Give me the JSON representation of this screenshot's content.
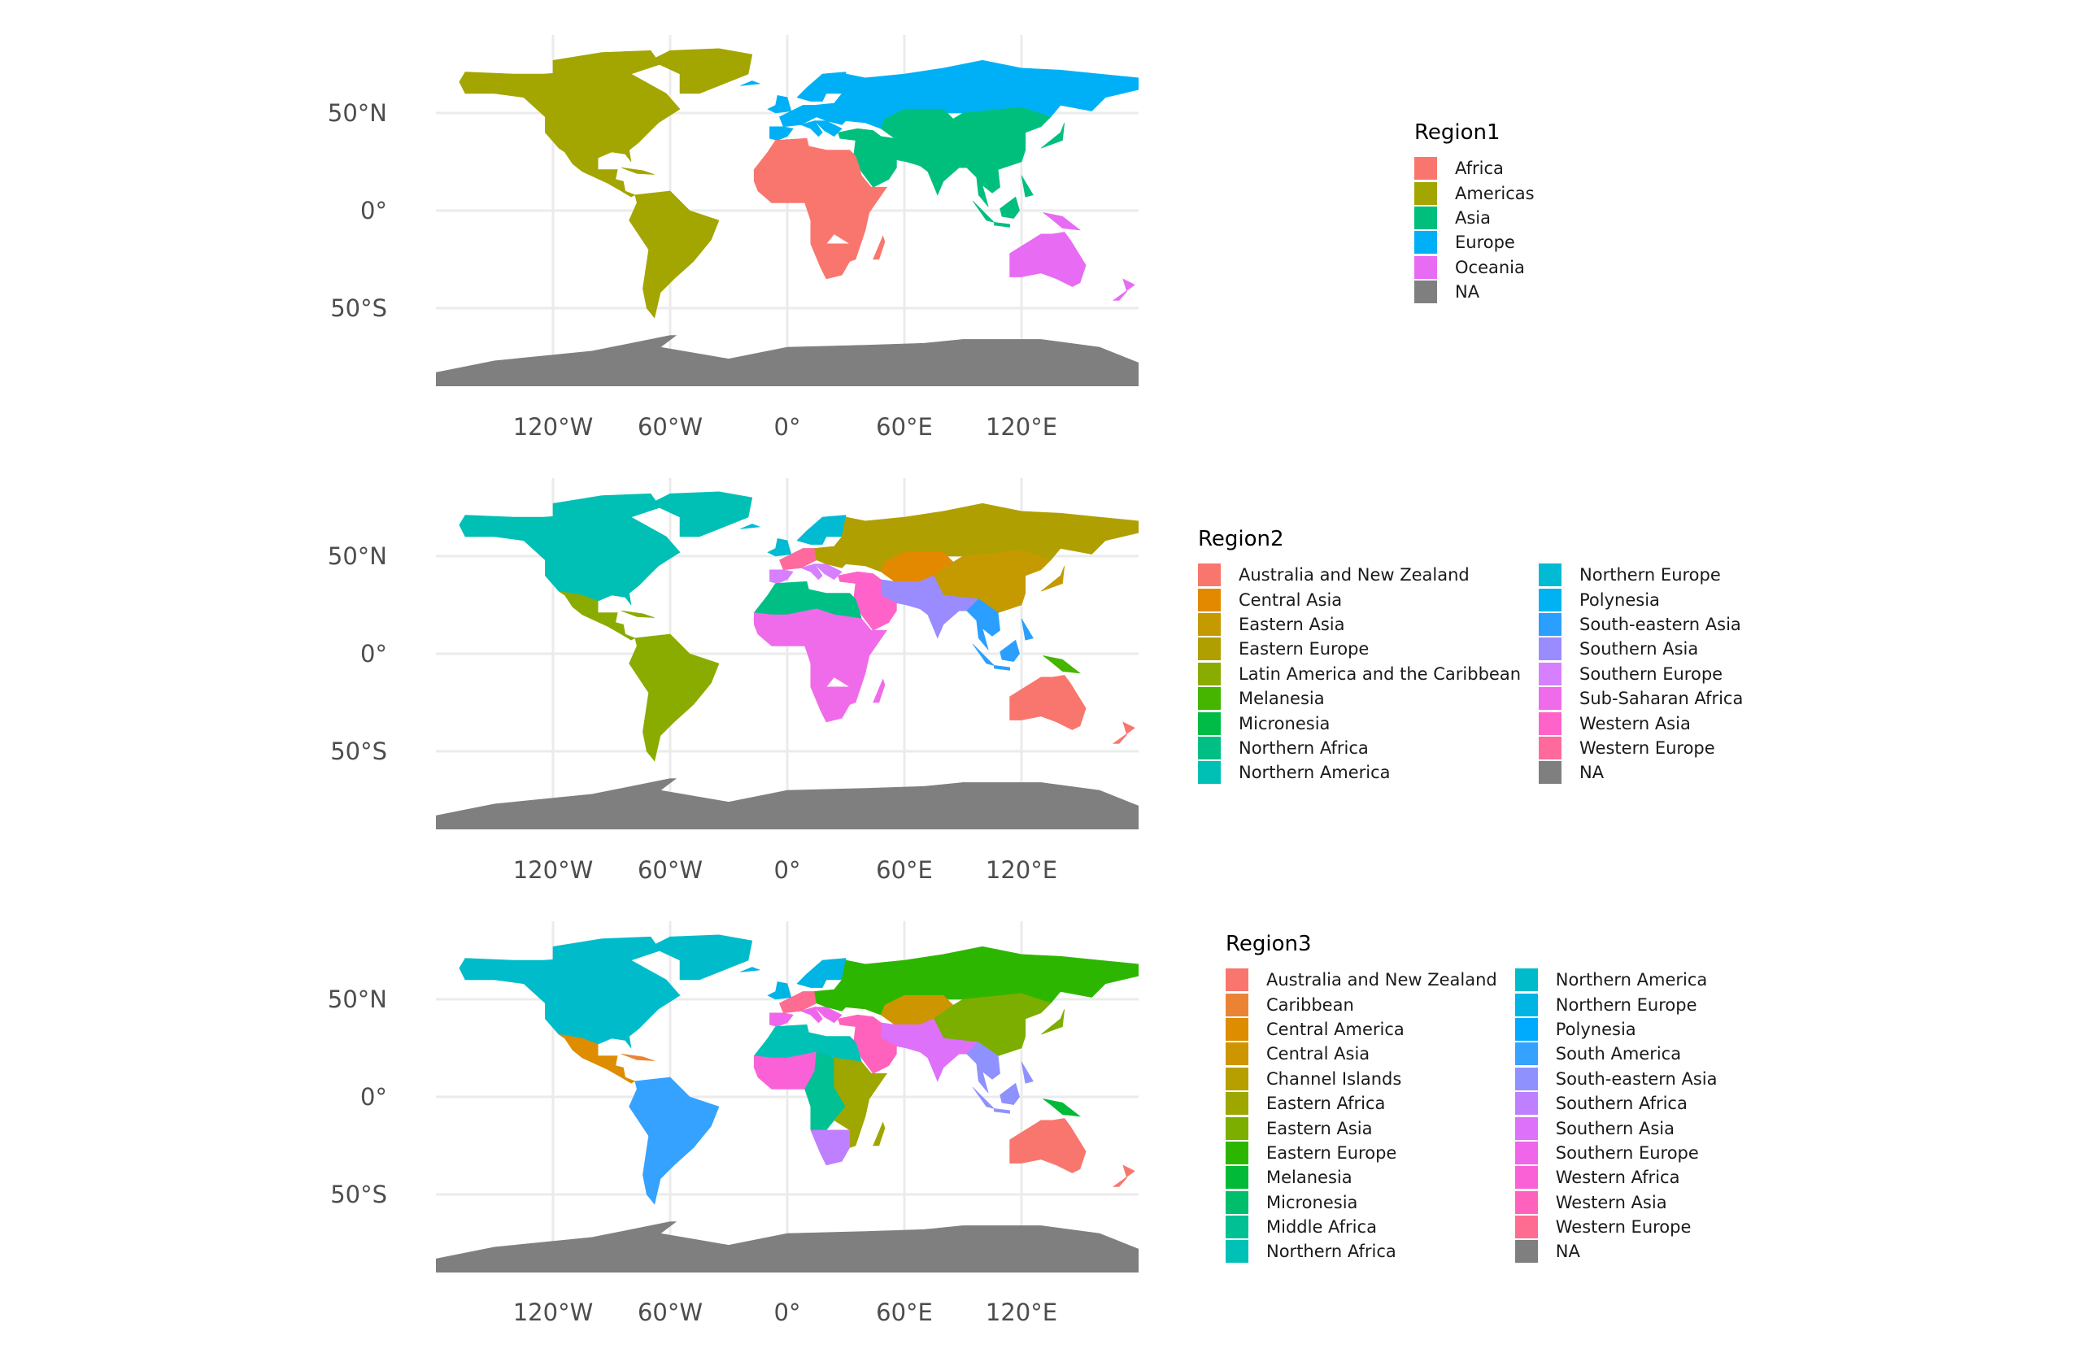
{
  "chart_data": [
    {
      "type": "map",
      "title": "Region1",
      "x_ticks": [
        "120°W",
        "60°W",
        "0°",
        "60°E",
        "120°E"
      ],
      "x_tick_values": [
        -120,
        -60,
        0,
        60,
        120
      ],
      "y_ticks": [
        "50°N",
        "0°",
        "50°S"
      ],
      "y_tick_values": [
        50,
        0,
        -50
      ],
      "legend": [
        {
          "label": "Africa",
          "color": "#F8766D"
        },
        {
          "label": "Americas",
          "color": "#A3A500"
        },
        {
          "label": "Asia",
          "color": "#00BF7D"
        },
        {
          "label": "Europe",
          "color": "#00B0F6"
        },
        {
          "label": "Oceania",
          "color": "#E76BF3"
        },
        {
          "label": "NA",
          "color": "#7F7F7F"
        }
      ]
    },
    {
      "type": "map",
      "title": "Region2",
      "x_ticks": [
        "120°W",
        "60°W",
        "0°",
        "60°E",
        "120°E"
      ],
      "x_tick_values": [
        -120,
        -60,
        0,
        60,
        120
      ],
      "y_ticks": [
        "50°N",
        "0°",
        "50°S"
      ],
      "y_tick_values": [
        50,
        0,
        -50
      ],
      "legend": [
        {
          "label": "Australia and New Zealand",
          "color": "#F8766D"
        },
        {
          "label": "Central Asia",
          "color": "#E38900"
        },
        {
          "label": "Eastern Asia",
          "color": "#C49A00"
        },
        {
          "label": "Eastern Europe",
          "color": "#B09F00"
        },
        {
          "label": "Latin America and the Caribbean",
          "color": "#8AAB00"
        },
        {
          "label": "Melanesia",
          "color": "#45B500"
        },
        {
          "label": "Micronesia",
          "color": "#00BB45"
        },
        {
          "label": "Northern Africa",
          "color": "#00BF84"
        },
        {
          "label": "Northern America",
          "color": "#00BFB5"
        },
        {
          "label": "Northern Europe",
          "color": "#00BBD2"
        },
        {
          "label": "Polynesia",
          "color": "#00B2F2"
        },
        {
          "label": "South-eastern Asia",
          "color": "#2B9FFF"
        },
        {
          "label": "Southern Asia",
          "color": "#9A8CFF"
        },
        {
          "label": "Southern Europe",
          "color": "#D67FFF"
        },
        {
          "label": "Sub-Saharan Africa",
          "color": "#F06BE9"
        },
        {
          "label": "Western Asia",
          "color": "#FF63C9"
        },
        {
          "label": "Western Europe",
          "color": "#FF6A9C"
        },
        {
          "label": "NA",
          "color": "#7F7F7F"
        }
      ]
    },
    {
      "type": "map",
      "title": "Region3",
      "x_ticks": [
        "120°W",
        "60°W",
        "0°",
        "60°E",
        "120°E"
      ],
      "x_tick_values": [
        -120,
        -60,
        0,
        60,
        120
      ],
      "y_ticks": [
        "50°N",
        "0°",
        "50°S"
      ],
      "y_tick_values": [
        50,
        0,
        -50
      ],
      "legend": [
        {
          "label": "Australia and New Zealand",
          "color": "#F8766D"
        },
        {
          "label": "Caribbean",
          "color": "#EB8335"
        },
        {
          "label": "Central America",
          "color": "#DE8C00"
        },
        {
          "label": "Central Asia",
          "color": "#CD9600"
        },
        {
          "label": "Channel Islands",
          "color": "#B79F00"
        },
        {
          "label": "Eastern Africa",
          "color": "#9DA700"
        },
        {
          "label": "Eastern Asia",
          "color": "#7CAE00"
        },
        {
          "label": "Eastern Europe",
          "color": "#2DB600"
        },
        {
          "label": "Melanesia",
          "color": "#00BA38"
        },
        {
          "label": "Micronesia",
          "color": "#00BE6C"
        },
        {
          "label": "Middle Africa",
          "color": "#00C094"
        },
        {
          "label": "Northern Africa",
          "color": "#00C1B5"
        },
        {
          "label": "Northern America",
          "color": "#00BCCA"
        },
        {
          "label": "Northern Europe",
          "color": "#00B4E4"
        },
        {
          "label": "Polynesia",
          "color": "#00ABFD"
        },
        {
          "label": "South America",
          "color": "#35A2FF"
        },
        {
          "label": "South-eastern Asia",
          "color": "#8F91FF"
        },
        {
          "label": "Southern Africa",
          "color": "#BF80FF"
        },
        {
          "label": "Southern Asia",
          "color": "#DE71F9"
        },
        {
          "label": "Southern Europe",
          "color": "#F066EA"
        },
        {
          "label": "Western Africa",
          "color": "#FB61D7"
        },
        {
          "label": "Western Asia",
          "color": "#FF62BC"
        },
        {
          "label": "Western Europe",
          "color": "#FF6C91"
        },
        {
          "label": "NA",
          "color": "#7F7F7F"
        }
      ]
    }
  ]
}
